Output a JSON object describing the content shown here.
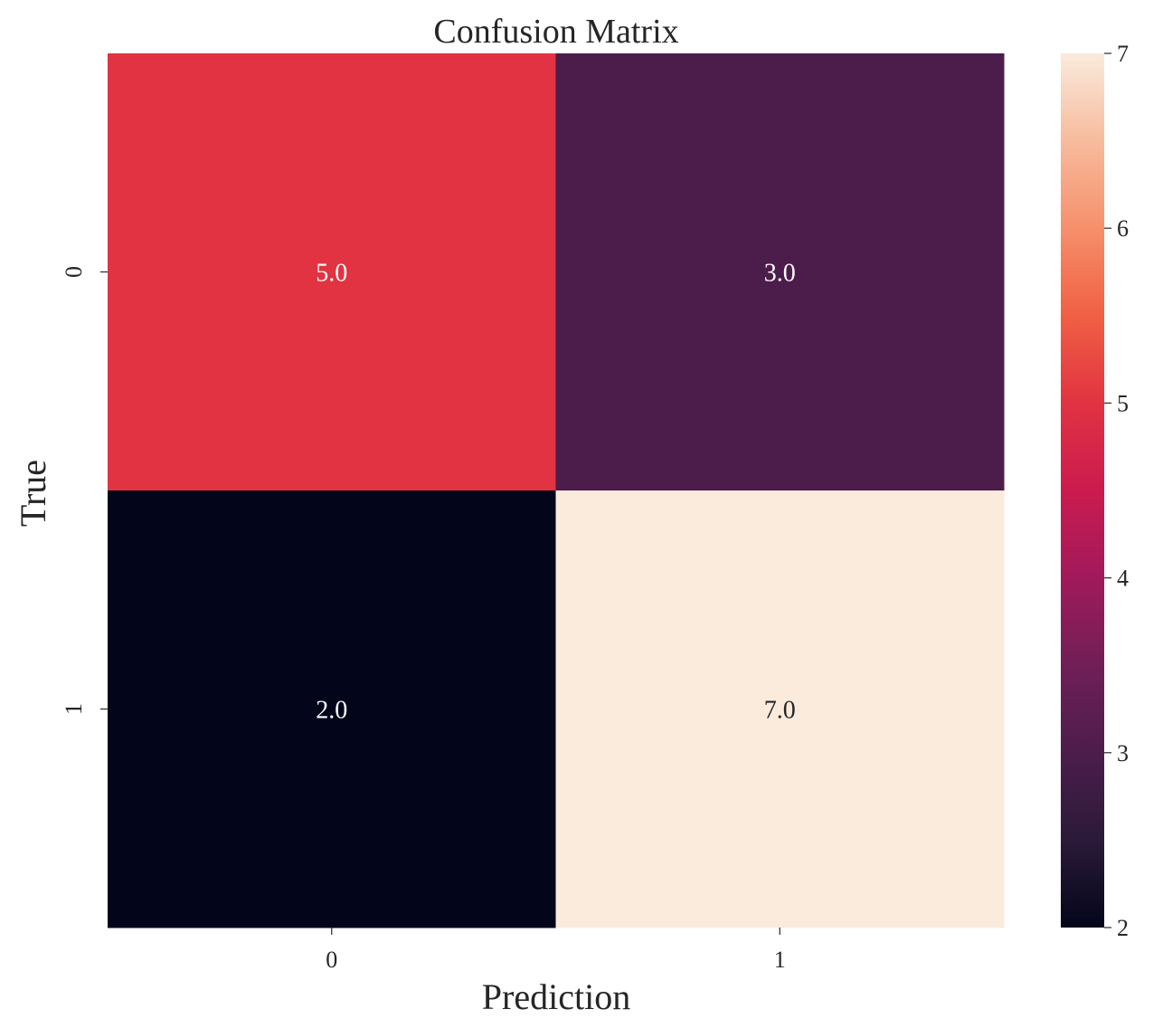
{
  "chart_data": {
    "type": "heatmap",
    "title": "Confusion Matrix",
    "xlabel": "Prediction",
    "ylabel": "True",
    "x_categories": [
      "0",
      "1"
    ],
    "y_categories": [
      "0",
      "1"
    ],
    "values": [
      [
        5.0,
        3.0
      ],
      [
        2.0,
        7.0
      ]
    ],
    "cell_labels": [
      [
        "5.0",
        "3.0"
      ],
      [
        "2.0",
        "7.0"
      ]
    ],
    "colorbar": {
      "range": [
        2,
        7
      ],
      "ticks": [
        2,
        3,
        4,
        5,
        6,
        7
      ],
      "tick_labels": [
        "2",
        "3",
        "4",
        "5",
        "6",
        "7"
      ],
      "colormap": "rocket",
      "colormap_stops": [
        "#03051a",
        "#2b1a39",
        "#4c1d4b",
        "#701f57",
        "#a11a5b",
        "#cb1b4f",
        "#e13342",
        "#f06043",
        "#f6906b",
        "#f7bb9d",
        "#faebdd"
      ]
    },
    "legend": "colorbar-right",
    "grid": false
  }
}
